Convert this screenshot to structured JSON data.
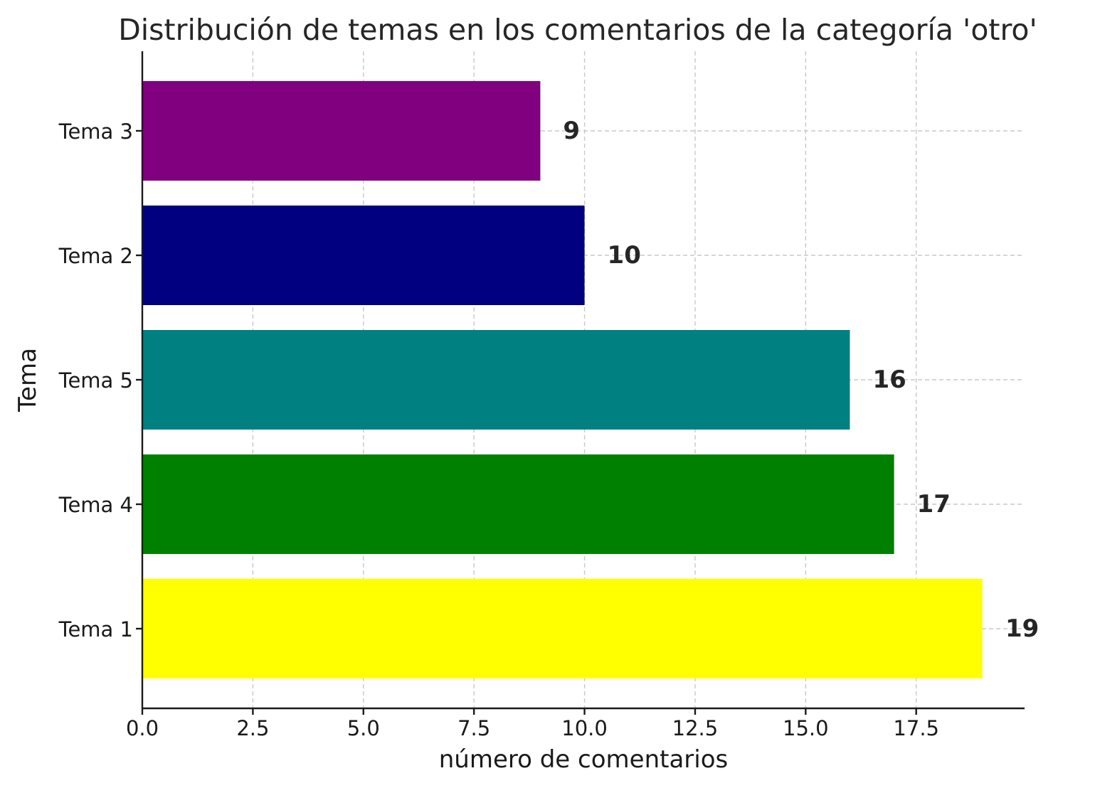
{
  "chart_data": {
    "type": "bar",
    "orientation": "horizontal",
    "title": "Distribución de temas en los comentarios de la categoría 'otro'",
    "xlabel": "número de comentarios",
    "ylabel": "Tema",
    "categories": [
      "Tema 1",
      "Tema 4",
      "Tema 5",
      "Tema 2",
      "Tema 3"
    ],
    "values": [
      19,
      17,
      16,
      10,
      9
    ],
    "data_labels": [
      "19",
      "17",
      "16",
      "10",
      "9"
    ],
    "colors": [
      "#ffff00",
      "#008000",
      "#008080",
      "#000080",
      "#800080"
    ],
    "xlim": [
      0,
      19.95
    ],
    "xticks": [
      0,
      2.5,
      5,
      7.5,
      10,
      12.5,
      15,
      17.5
    ],
    "xtick_labels": [
      "0.0",
      "2.5",
      "5.0",
      "7.5",
      "10.0",
      "12.5",
      "15.0",
      "17.5"
    ],
    "grid": true
  }
}
